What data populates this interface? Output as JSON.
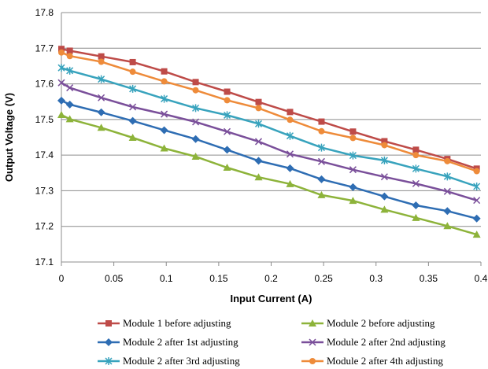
{
  "chart_data": {
    "type": "line",
    "title": "",
    "xlabel": "Input Current (A)",
    "ylabel": "Output Voltage (V)",
    "xlim": [
      0,
      0.4
    ],
    "ylim": [
      17.1,
      17.8
    ],
    "xticks": [
      "0",
      "0.05",
      "0.1",
      "0.15",
      "0.2",
      "0.25",
      "0.3",
      "0.35",
      "0.4"
    ],
    "yticks": [
      "17.1",
      "17.2",
      "17.3",
      "17.4",
      "17.5",
      "17.6",
      "17.7",
      "17.8"
    ],
    "grid": "horizontal",
    "legend_position": "bottom",
    "x": [
      0,
      0.008,
      0.038,
      0.068,
      0.098,
      0.128,
      0.158,
      0.188,
      0.218,
      0.248,
      0.278,
      0.308,
      0.338,
      0.368,
      0.396
    ],
    "series": [
      {
        "name": "Module 1 before adjusting",
        "color": "#be4b48",
        "marker": "square",
        "values": [
          17.698,
          17.693,
          17.677,
          17.661,
          17.635,
          17.605,
          17.578,
          17.549,
          17.521,
          17.494,
          17.466,
          17.439,
          17.415,
          17.389,
          17.362
        ]
      },
      {
        "name": "Module 2 before adjusting",
        "color": "#8db33a",
        "marker": "triangle",
        "values": [
          17.513,
          17.501,
          17.477,
          17.449,
          17.419,
          17.396,
          17.365,
          17.338,
          17.319,
          17.288,
          17.272,
          17.247,
          17.224,
          17.201,
          17.177
        ]
      },
      {
        "name": "Module 2 after 1st adjusting",
        "color": "#2e6db3",
        "marker": "diamond",
        "values": [
          17.553,
          17.542,
          17.52,
          17.496,
          17.47,
          17.445,
          17.415,
          17.384,
          17.363,
          17.332,
          17.31,
          17.284,
          17.259,
          17.243,
          17.222
        ]
      },
      {
        "name": "Module 2 after 2nd adjusting",
        "color": "#7a4f9a",
        "marker": "x",
        "values": [
          17.603,
          17.589,
          17.561,
          17.535,
          17.515,
          17.493,
          17.466,
          17.438,
          17.403,
          17.382,
          17.359,
          17.339,
          17.32,
          17.298,
          17.273
        ]
      },
      {
        "name": "Module 2 after 3rd adjusting",
        "color": "#38a3bd",
        "marker": "star",
        "values": [
          17.645,
          17.637,
          17.613,
          17.586,
          17.558,
          17.532,
          17.512,
          17.488,
          17.454,
          17.421,
          17.399,
          17.385,
          17.362,
          17.34,
          17.312
        ]
      },
      {
        "name": "Module 2 after 4th adjusting",
        "color": "#ee8b3a",
        "marker": "circle",
        "values": [
          17.688,
          17.678,
          17.662,
          17.634,
          17.607,
          17.582,
          17.554,
          17.532,
          17.499,
          17.467,
          17.448,
          17.428,
          17.4,
          17.383,
          17.355
        ]
      }
    ]
  }
}
